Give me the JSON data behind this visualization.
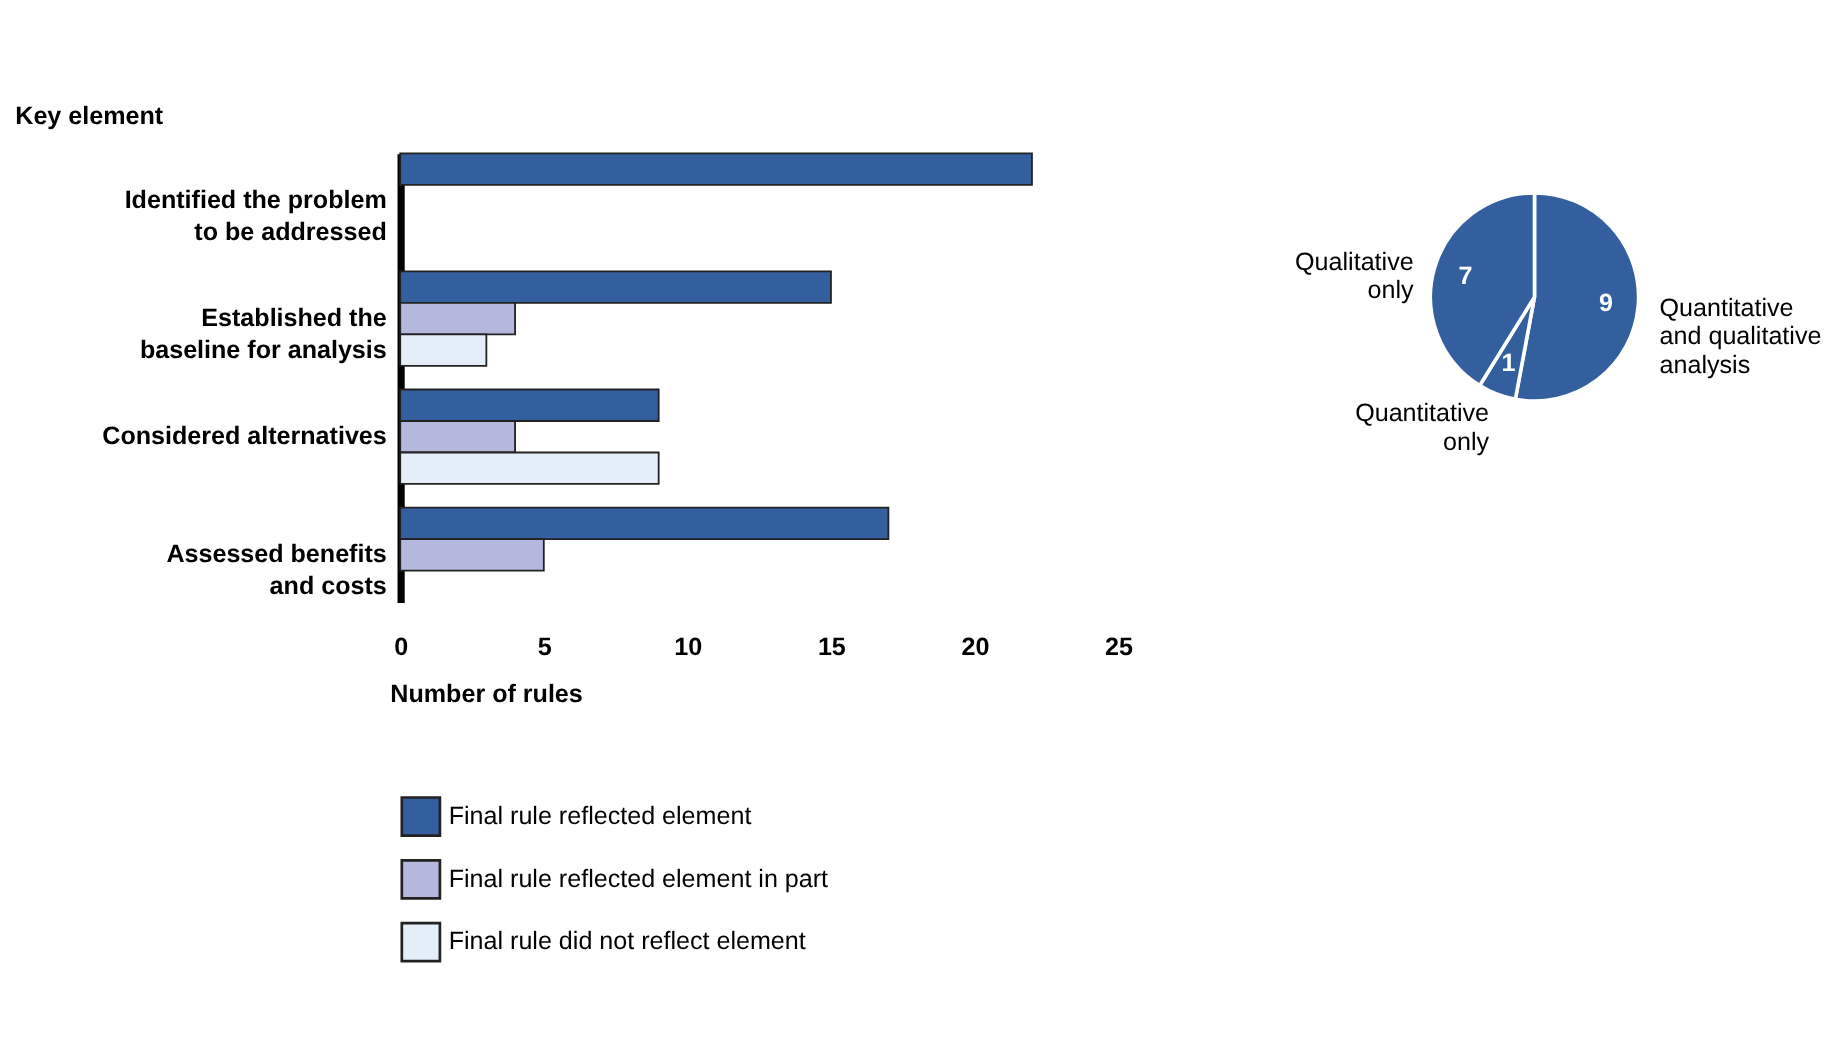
{
  "chart_data": [
    {
      "type": "bar",
      "orientation": "horizontal",
      "ylabel": "Key element",
      "xlabel": "Number of rules",
      "categories": [
        "Identified the problem\nto be addressed",
        "Established the\nbaseline for analysis",
        "Considered alternatives",
        "Assessed benefits\nand costs"
      ],
      "series": [
        {
          "name": "Final rule reflected element",
          "color": "#335f9e",
          "values": [
            22,
            15,
            9,
            17
          ]
        },
        {
          "name": "Final rule reflected element in part",
          "color": "#b3b8dc",
          "values": [
            null,
            4,
            4,
            5
          ]
        },
        {
          "name": "Final rule did not reflect element",
          "color": "#e4eef8",
          "values": [
            null,
            3,
            9,
            null
          ]
        }
      ],
      "xlim": [
        0,
        25
      ],
      "xticks": [
        0,
        5,
        10,
        15,
        20,
        25
      ],
      "grid": false,
      "legend": "bottom"
    },
    {
      "type": "pie",
      "categories": [
        "Quantitative and qualitative analysis",
        "Quantitative only",
        "Qualitative only"
      ],
      "values": [
        9,
        1,
        7
      ],
      "colors": [
        "#335f9e",
        "#335f9e",
        "#335f9e"
      ],
      "data_labels": true
    }
  ]
}
